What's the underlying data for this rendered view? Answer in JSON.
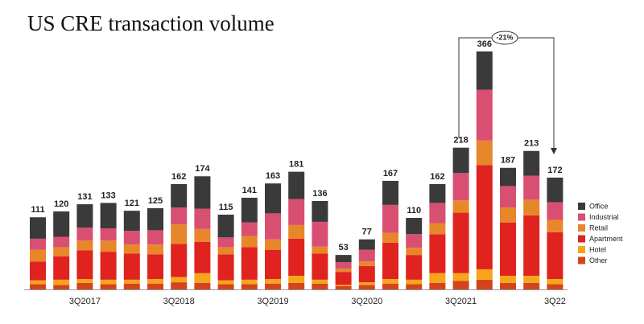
{
  "chart_data": {
    "type": "stacked_bar",
    "title": "US CRE transaction volume",
    "categories": [
      null,
      null,
      "3Q2017",
      null,
      null,
      null,
      "3Q2018",
      null,
      null,
      null,
      "3Q2019",
      null,
      null,
      null,
      "3Q2020",
      null,
      null,
      null,
      "3Q2021",
      null,
      null,
      null,
      "3Q22"
    ],
    "series": [
      {
        "name": "Other",
        "color": "#d4441c",
        "values": [
          8,
          7,
          10,
          8,
          9,
          9,
          11,
          10,
          8,
          8,
          9,
          10,
          9,
          5,
          7,
          9,
          8,
          10,
          13,
          15,
          10,
          10,
          8
        ]
      },
      {
        "name": "Hotel",
        "color": "#f7a51c",
        "values": [
          6,
          8,
          6,
          7,
          6,
          7,
          8,
          15,
          6,
          7,
          7,
          11,
          6,
          2,
          4,
          7,
          7,
          15,
          12,
          16,
          11,
          11,
          8
        ]
      },
      {
        "name": "Apartment",
        "color": "#e0231f",
        "values": [
          29,
          36,
          44,
          43,
          40,
          38,
          51,
          48,
          40,
          50,
          45,
          57,
          40,
          20,
          25,
          56,
          38,
          60,
          93,
          160,
          82,
          93,
          72
        ]
      },
      {
        "name": "Retail",
        "color": "#e8862a",
        "values": [
          18,
          14,
          15,
          17,
          14,
          15,
          30,
          20,
          11,
          17,
          16,
          21,
          11,
          5,
          7,
          15,
          11,
          17,
          19,
          38,
          23,
          24,
          19
        ]
      },
      {
        "name": "Industrial",
        "color": "#d94f72",
        "values": [
          17,
          16,
          20,
          19,
          21,
          22,
          26,
          31,
          15,
          21,
          40,
          40,
          38,
          10,
          18,
          43,
          21,
          31,
          42,
          78,
          33,
          37,
          27
        ]
      },
      {
        "name": "Office",
        "color": "#3a3a3a",
        "values": [
          33,
          39,
          36,
          39,
          31,
          34,
          36,
          50,
          35,
          38,
          46,
          42,
          32,
          11,
          16,
          37,
          25,
          29,
          39,
          59,
          28,
          38,
          38
        ]
      }
    ],
    "totals": [
      111,
      120,
      131,
      133,
      121,
      125,
      162,
      174,
      115,
      141,
      163,
      181,
      136,
      53,
      77,
      167,
      110,
      162,
      218,
      366,
      187,
      213,
      172
    ],
    "annotation": "-21%"
  }
}
